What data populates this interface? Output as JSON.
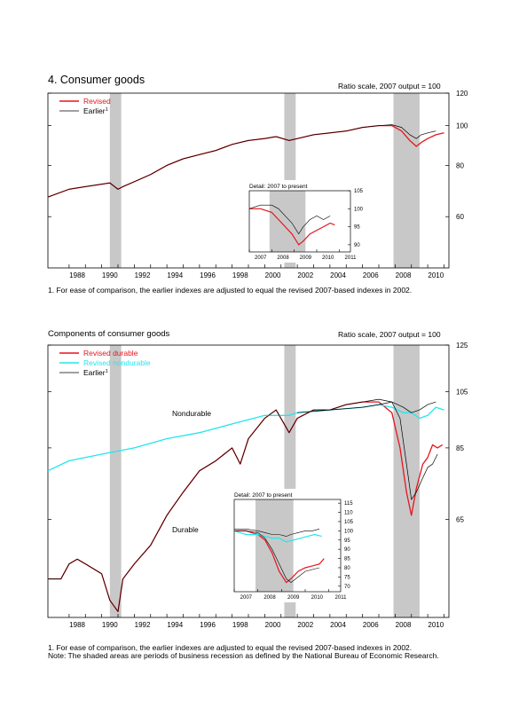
{
  "page": {
    "title1": "4. Consumer goods",
    "scale_note": "Ratio scale, 2007 output = 100",
    "footnote1": "1. For ease of comparison, the earlier indexes are adjusted to equal the revised 2007-based indexes in 2002.",
    "title2": "Components of consumer goods",
    "footnote2_line1": "1. For ease of comparison, the earlier indexes are adjusted to equal the revised 2007-based indexes in 2002.",
    "footnote2_line2": "Note: The shaded areas are periods of business recession as defined by the National Bureau of Economic Research."
  },
  "chart_data": [
    {
      "type": "line",
      "title": "4. Consumer goods",
      "scale": "log",
      "ylabel": "Ratio scale, 2007 output = 100",
      "ylim": [
        45,
        120
      ],
      "y_ticks": [
        60,
        80,
        100,
        120
      ],
      "xlim": [
        1986.7,
        2011.3
      ],
      "x_ticks": [
        "1988",
        "1990",
        "1992",
        "1994",
        "1996",
        "1998",
        "2000",
        "2002",
        "2004",
        "2006",
        "2008",
        "2010"
      ],
      "recessions": [
        [
          1990.5,
          1991.2
        ],
        [
          2001.2,
          2001.9
        ],
        [
          2007.9,
          2009.5
        ]
      ],
      "legend": [
        "Revised",
        "Earlier"
      ],
      "legend_superscripts": [
        "",
        "1"
      ],
      "colors": {
        "Revised": "#e8141b",
        "Earlier": "#000000"
      },
      "series": [
        {
          "name": "Revised",
          "x": [
            1986.7,
            1988,
            1989,
            1990,
            1990.5,
            1991,
            1991.3,
            1992,
            1993,
            1994,
            1995,
            1996,
            1997,
            1998,
            1999,
            2000,
            2000.7,
            2001.5,
            2002,
            2003,
            2004,
            2005,
            2006,
            2007,
            2007.8,
            2008.4,
            2008.9,
            2009.3,
            2009.6,
            2010,
            2010.5,
            2011
          ],
          "y": [
            67,
            70,
            71,
            72,
            72.5,
            70,
            71,
            73,
            76,
            80,
            83,
            85,
            87,
            90,
            92,
            93,
            94,
            92,
            93,
            95,
            96,
            97,
            99,
            100,
            100,
            97,
            92,
            89,
            91,
            93,
            95,
            96
          ]
        },
        {
          "name": "Earlier",
          "x": [
            1986.7,
            1988,
            1989,
            1990,
            1990.5,
            1991,
            1991.3,
            1992,
            1993,
            1994,
            1995,
            1996,
            1997,
            1998,
            1999,
            2000,
            2000.7,
            2001.5,
            2002,
            2003,
            2004,
            2005,
            2006,
            2007,
            2007.8,
            2008.4,
            2008.9,
            2009.3,
            2009.6,
            2010,
            2010.5
          ],
          "y": [
            67,
            70,
            71,
            72,
            72.5,
            70,
            71,
            73,
            76,
            80,
            83,
            85,
            87,
            90,
            92,
            93,
            94,
            92,
            93,
            95,
            96,
            97,
            99,
            100,
            100.5,
            99,
            95,
            93,
            95,
            96,
            97
          ]
        }
      ],
      "inset": {
        "title": "Detail: 2007 to present",
        "xlim": [
          2007,
          2011.5
        ],
        "x_ticks": [
          "2007",
          "2008",
          "2009",
          "2010",
          "2011"
        ],
        "ylim": [
          88,
          105
        ],
        "y_ticks": [
          90,
          95,
          100,
          105
        ],
        "recessions": [
          [
            2007.9,
            2009.5
          ]
        ],
        "series": [
          {
            "name": "Revised",
            "x": [
              2007,
              2007.5,
              2008,
              2008.3,
              2008.6,
              2008.9,
              2009.2,
              2009.4,
              2009.7,
              2010,
              2010.3,
              2010.6,
              2010.8
            ],
            "y": [
              100,
              100,
              99,
              97,
              95,
              93,
              90,
              91,
              93,
              94,
              95,
              96,
              95.5
            ]
          },
          {
            "name": "Earlier",
            "x": [
              2007,
              2007.5,
              2008,
              2008.3,
              2008.6,
              2008.9,
              2009.2,
              2009.4,
              2009.7,
              2010,
              2010.3,
              2010.6
            ],
            "y": [
              100,
              101,
              101,
              100,
              98,
              96,
              93,
              95,
              97,
              98,
              97,
              98
            ]
          }
        ]
      }
    },
    {
      "type": "line",
      "title": "Components of consumer goods",
      "scale": "log",
      "ylabel": "Ratio scale, 2007 output = 100",
      "ylim": [
        45,
        125
      ],
      "y_ticks": [
        65,
        85,
        105,
        125
      ],
      "xlim": [
        1986.7,
        2011.3
      ],
      "x_ticks": [
        "1988",
        "1990",
        "1992",
        "1994",
        "1996",
        "1998",
        "2000",
        "2002",
        "2004",
        "2006",
        "2008",
        "2010"
      ],
      "recessions": [
        [
          1990.5,
          1991.2
        ],
        [
          2001.2,
          2001.9
        ],
        [
          2007.9,
          2009.5
        ]
      ],
      "legend": [
        "Revised durable",
        "Revised nondurable",
        "Earlier"
      ],
      "legend_superscripts": [
        "",
        "",
        "1"
      ],
      "colors": {
        "Revised durable": "#e8141b",
        "Revised nondurable": "#22e6ee",
        "Earlier": "#000000"
      },
      "annotations": [
        "Nondurable",
        "Durable"
      ],
      "series": [
        {
          "name": "Revised durable",
          "x": [
            1986.7,
            1987.5,
            1988,
            1988.5,
            1989,
            1989.5,
            1990,
            1990.5,
            1991,
            1991.3,
            1992,
            1993,
            1994,
            1995,
            1996,
            1997,
            1998,
            1998.5,
            1999,
            2000,
            2000.7,
            2001.5,
            2002,
            2003,
            2004,
            2005,
            2006,
            2007,
            2007.8,
            2008.3,
            2008.7,
            2009,
            2009.3,
            2009.7,
            2010,
            2010.3,
            2010.6,
            2010.9
          ],
          "y": [
            52,
            52,
            55,
            56,
            55,
            54,
            53,
            48,
            46,
            52,
            55,
            59,
            66,
            72,
            78,
            81,
            85,
            80,
            88,
            95,
            98,
            90,
            95,
            98,
            98,
            100,
            101,
            101,
            97,
            85,
            72,
            66,
            73,
            80,
            82,
            86,
            85,
            86
          ]
        },
        {
          "name": "Revised nondurable",
          "x": [
            1986.7,
            1988,
            1990,
            1992,
            1994,
            1996,
            1998,
            2000,
            2001.5,
            2002,
            2004,
            2006,
            2007,
            2007.8,
            2008.5,
            2009,
            2009.5,
            2010,
            2010.5,
            2011
          ],
          "y": [
            78,
            81,
            83,
            85,
            88,
            90,
            93,
            96,
            96,
            97,
            98,
            99,
            100,
            99,
            97,
            97,
            95,
            96,
            99,
            98
          ]
        },
        {
          "name": "Earlier",
          "x": [
            1986.7,
            1987.5,
            1988,
            1988.5,
            1989,
            1989.5,
            1990,
            1990.5,
            1991,
            1991.3,
            1992,
            1993,
            1994,
            1995,
            1996,
            1997,
            1998,
            1998.5,
            1999,
            2000,
            2000.7,
            2001.5,
            2002,
            2003,
            2004,
            2005,
            2006,
            2007,
            2007.8,
            2008.3,
            2008.7,
            2009,
            2009.3,
            2009.7,
            2010,
            2010.3,
            2010.6
          ],
          "y": [
            52,
            52,
            55,
            56,
            55,
            54,
            53,
            48,
            46,
            52,
            55,
            59,
            66,
            72,
            78,
            81,
            85,
            80,
            88,
            95,
            98,
            90,
            95,
            98,
            98,
            100,
            101,
            102,
            101,
            95,
            80,
            70,
            72,
            76,
            79,
            80,
            83
          ]
        },
        {
          "name": "Earlier",
          "x": [
            2002,
            2004,
            2006,
            2007,
            2007.8,
            2008.5,
            2009,
            2009.5,
            2010,
            2010.5
          ],
          "y": [
            97,
            98,
            99,
            100,
            101,
            99,
            97,
            98,
            100,
            101
          ]
        }
      ],
      "inset": {
        "title": "Detail: 2007 to present",
        "xlim": [
          2007,
          2011.5
        ],
        "x_ticks": [
          "2007",
          "2008",
          "2009",
          "2010",
          "2011"
        ],
        "ylim": [
          67,
          117
        ],
        "y_ticks": [
          70,
          75,
          80,
          85,
          90,
          95,
          100,
          105,
          110,
          115
        ],
        "recessions": [
          [
            2007.9,
            2009.5
          ]
        ],
        "series": [
          {
            "name": "Revised durable",
            "x": [
              2007,
              2007.5,
              2008,
              2008.3,
              2008.6,
              2008.9,
              2009.2,
              2009.4,
              2009.7,
              2010,
              2010.3,
              2010.6,
              2010.8
            ],
            "y": [
              100,
              100,
              98,
              95,
              88,
              78,
              72,
              74,
              78,
              80,
              81,
              82,
              85
            ]
          },
          {
            "name": "Revised nondurable",
            "x": [
              2007,
              2007.5,
              2008,
              2008.3,
              2008.6,
              2008.9,
              2009.2,
              2009.5,
              2009.8,
              2010.1,
              2010.4,
              2010.7
            ],
            "y": [
              100,
              98,
              98,
              97,
              96,
              96,
              94,
              95,
              96,
              97,
              98,
              97
            ]
          },
          {
            "name": "Earlier",
            "x": [
              2007,
              2007.5,
              2008,
              2008.3,
              2008.6,
              2008.9,
              2009.2,
              2009.4,
              2009.7,
              2010,
              2010.3,
              2010.6
            ],
            "y": [
              101,
              101,
              100,
              99,
              98,
              98,
              97,
              98,
              99,
              100,
              100,
              101
            ]
          },
          {
            "name": "Earlier",
            "x": [
              2007,
              2007.5,
              2008,
              2008.3,
              2008.6,
              2008.9,
              2009.2,
              2009.4,
              2009.7,
              2010,
              2010.3,
              2010.6
            ],
            "y": [
              100,
              100,
              99,
              96,
              90,
              82,
              74,
              72,
              75,
              78,
              79,
              80
            ]
          }
        ]
      }
    }
  ]
}
